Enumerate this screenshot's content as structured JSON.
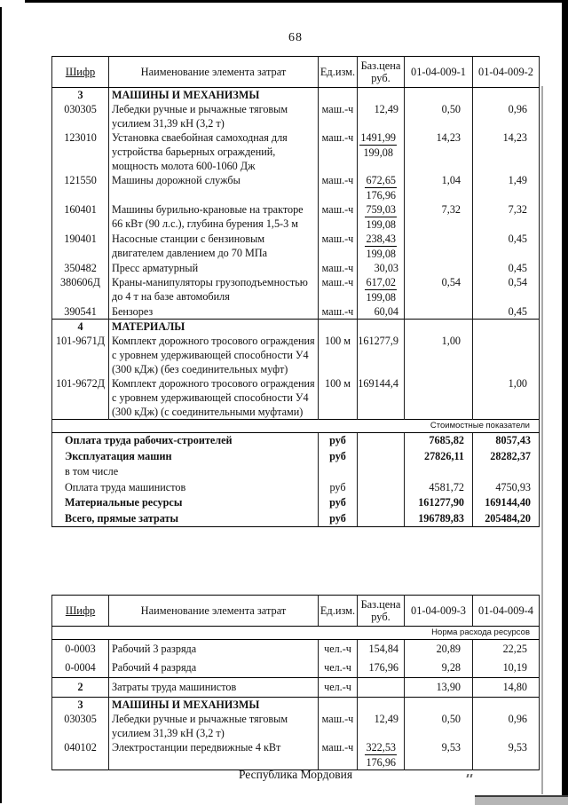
{
  "page": {
    "number": "68",
    "footer": "Республика Мордовия"
  },
  "tables": [
    {
      "title": "cost-table-01-04-009-1-2",
      "headers": [
        "Шифр",
        "Наименование элемента затрат",
        "Ед.изм.",
        "Баз.цена руб.",
        "01-04-009-1",
        "01-04-009-2"
      ],
      "rows": [
        {
          "type": "section",
          "code": "3",
          "name": "МАШИНЫ И МЕХАНИЗМЫ"
        },
        {
          "type": "item",
          "code": "030305",
          "name": "Лебедки ручные и рычажные тяговым усилием 31,39 кН (3,2 т)",
          "unit": "маш.-ч",
          "price": "12,49",
          "v1": "0,50",
          "v2": "0,96"
        },
        {
          "type": "item",
          "code": "123010",
          "name": "Установка сваебойная самоходная для устройства барьерных ограждений, мощность молота 600-1060 Дж",
          "unit": "маш.-ч",
          "price": "1491,99",
          "price2": "199,08",
          "v1": "14,23",
          "v2": "14,23"
        },
        {
          "type": "item",
          "code": "121550",
          "name": "Машины дорожной службы",
          "unit": "маш.-ч",
          "price": "672,65",
          "price2": "176,96",
          "v1": "1,04",
          "v2": "1,49"
        },
        {
          "type": "item",
          "code": "160401",
          "name": "Машины бурильно-крановые на тракторе 66 кВт (90 л.с.), глубина бурения 1,5-3 м",
          "unit": "маш.-ч",
          "price": "759,03",
          "price2": "199,08",
          "v1": "7,32",
          "v2": "7,32"
        },
        {
          "type": "item",
          "code": "190401",
          "name": "Насосные станции с бензиновым двигателем давлением до 70 МПа",
          "unit": "маш.-ч",
          "price": "238,43",
          "price2": "199,08",
          "v1": "",
          "v2": "0,45"
        },
        {
          "type": "item",
          "code": "350482",
          "name": "Пресс арматурный",
          "unit": "маш.-ч",
          "price": "30,03",
          "v1": "",
          "v2": "0,45"
        },
        {
          "type": "item",
          "code": "380606Д",
          "name": "Краны-манипуляторы грузоподъемностью до 4 т на базе автомобиля",
          "unit": "маш.-ч",
          "price": "617,02",
          "price2": "199,08",
          "v1": "0,54",
          "v2": "0,54"
        },
        {
          "type": "item",
          "code": "390541",
          "name": "Бензорез",
          "unit": "маш.-ч",
          "price": "60,04",
          "v1": "",
          "v2": "0,45"
        },
        {
          "type": "section",
          "code": "4",
          "name": "МАТЕРИАЛЫ",
          "sep": true
        },
        {
          "type": "item",
          "code": "101-9671Д",
          "name": "Комплект дорожного тросового ограждения с уровнем удерживающей способности У4 (300 кДж) (без соединительных муфт)",
          "unit": "100 м",
          "price": "161277,9",
          "v1": "1,00",
          "v2": ""
        },
        {
          "type": "item",
          "code": "101-9672Д",
          "name": "Комплект дорожного тросового ограждения с уровнем удерживающей способности У4 (300 кДж) (с соединительными муфтами)",
          "unit": "100 м",
          "price": "169144,4",
          "v1": "",
          "v2": "1,00"
        }
      ],
      "note_bottom": "Стоимостные показатели",
      "summary": [
        {
          "label": "Оплата труда рабочих-строителей",
          "unit": "руб",
          "v1": "7685,82",
          "v2": "8057,43",
          "bold": true
        },
        {
          "label": "Эксплуатация машин",
          "unit": "руб",
          "v1": "27826,11",
          "v2": "28282,37",
          "bold": true
        },
        {
          "label": "в том числе",
          "unit": "",
          "v1": "",
          "v2": "",
          "bold": false
        },
        {
          "label": "Оплата труда машинистов",
          "unit": "руб",
          "v1": "4581,72",
          "v2": "4750,93",
          "bold": false
        },
        {
          "label": "Материальные ресурсы",
          "unit": "руб",
          "v1": "161277,90",
          "v2": "169144,40",
          "bold": true
        },
        {
          "label": "Всего, прямые затраты",
          "unit": "руб",
          "v1": "196789,83",
          "v2": "205484,20",
          "bold": true
        }
      ]
    },
    {
      "title": "cost-table-01-04-009-3-4",
      "headers": [
        "Шифр",
        "Наименование элемента затрат",
        "Ед.изм.",
        "Баз.цена руб.",
        "01-04-009-3",
        "01-04-009-4"
      ],
      "note_top": "Норма расхода ресурсов",
      "rows": [
        {
          "type": "item",
          "code": "0-0003",
          "name": "Рабочий 3 разряда",
          "unit": "чел.-ч",
          "price": "154,84",
          "v1": "20,89",
          "v2": "22,25",
          "pad": true
        },
        {
          "type": "item",
          "code": "0-0004",
          "name": "Рабочий 4 разряда",
          "unit": "чел.-ч",
          "price": "176,96",
          "v1": "9,28",
          "v2": "10,19",
          "pad": true
        },
        {
          "type": "item",
          "code": "2",
          "name": "Затраты труда машинистов",
          "unit": "чел.-ч",
          "price": "",
          "v1": "13,90",
          "v2": "14,80",
          "bold_code": true,
          "sep": true,
          "pad": true
        },
        {
          "type": "section",
          "code": "3",
          "name": "МАШИНЫ И МЕХАНИЗМЫ",
          "sep": true
        },
        {
          "type": "item",
          "code": "030305",
          "name": "Лебедки ручные и рычажные тяговым усилием 31,39 кН (3,2 т)",
          "unit": "маш.-ч",
          "price": "12,49",
          "v1": "0,50",
          "v2": "0,96"
        },
        {
          "type": "item",
          "code": "040102",
          "name": "Электростанции передвижные 4 кВт",
          "unit": "маш.-ч",
          "price": "322,53",
          "price2": "176,96",
          "v1": "9,53",
          "v2": "9,53"
        }
      ]
    }
  ]
}
